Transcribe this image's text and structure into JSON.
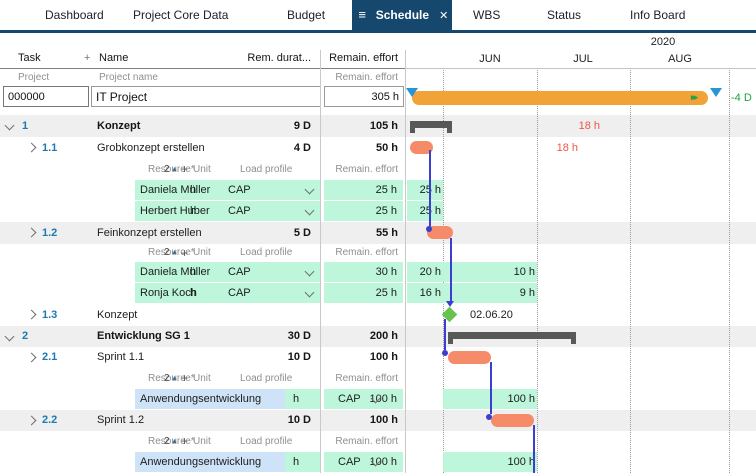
{
  "nav": {
    "tabs": [
      "Dashboard",
      "Project Core Data",
      "Budget",
      "Schedule",
      "WBS",
      "Status",
      "Info Board"
    ],
    "active_tab": "Schedule",
    "menu_icon": "≡",
    "close_icon": "✕"
  },
  "columns": {
    "task": "Task",
    "add": "+",
    "name": "Name",
    "duration": "Rem. durat...",
    "effort": "Remain. effort"
  },
  "subcolumns": {
    "project": "Project",
    "project_name": "Project name",
    "effort": "Remain. effort"
  },
  "project": {
    "id": "000000",
    "name": "IT Project",
    "effort": "305 h",
    "ahead_icon": "▸▸",
    "end_delta": "-4 D"
  },
  "timeline": {
    "year": "2020",
    "months": [
      "JUN",
      "JUL",
      "AUG"
    ]
  },
  "resource_header": {
    "label": "Resource*",
    "sort_count": "2",
    "sort_icon": "▲",
    "add": "+",
    "unit": "Unit",
    "load_profile": "Load profile",
    "effort": "Remain. effort"
  },
  "rows": [
    {
      "kind": "summary",
      "num": "1",
      "name": "Konzept",
      "duration": "9 D",
      "effort": "105 h",
      "gantt_note": "18 h"
    },
    {
      "kind": "task",
      "num": "1.1",
      "name": "Grobkonzept erstellen",
      "duration": "4 D",
      "effort": "50 h",
      "gantt_note": "18 h"
    },
    {
      "kind": "resource_header"
    },
    {
      "kind": "resource",
      "name": "Daniela Müller",
      "unit": "h",
      "load_profile": "CAP",
      "effort": "25 h",
      "period_values": [
        "25 h"
      ]
    },
    {
      "kind": "resource",
      "name": "Herbert Huber",
      "unit": "h",
      "load_profile": "CAP",
      "effort": "25 h",
      "period_values": [
        "25 h"
      ]
    },
    {
      "kind": "task",
      "num": "1.2",
      "name": "Feinkonzept erstellen",
      "duration": "5 D",
      "effort": "55 h"
    },
    {
      "kind": "resource_header"
    },
    {
      "kind": "resource",
      "name": "Daniela Müller",
      "unit": "h",
      "load_profile": "CAP",
      "effort": "30 h",
      "period_values": [
        "20 h",
        "10 h"
      ]
    },
    {
      "kind": "resource",
      "name": "Ronja Koch",
      "unit": "h",
      "load_profile": "CAP",
      "effort": "25 h",
      "period_values": [
        "16 h",
        "9 h"
      ]
    },
    {
      "kind": "task",
      "num": "1.3",
      "name": "Konzept",
      "milestone_date": "02.06.20"
    },
    {
      "kind": "summary",
      "num": "2",
      "name": "Entwicklung SG 1",
      "duration": "30 D",
      "effort": "200 h"
    },
    {
      "kind": "task",
      "num": "2.1",
      "name": "Sprint 1.1",
      "duration": "10 D",
      "effort": "100 h"
    },
    {
      "kind": "resource_header"
    },
    {
      "kind": "resource",
      "name": "Anwendungsentwicklung",
      "team": true,
      "unit": "h",
      "load_profile": "CAP",
      "effort": "100 h",
      "period_values": [
        "100 h"
      ]
    },
    {
      "kind": "task",
      "num": "2.2",
      "name": "Sprint 1.2",
      "duration": "10 D",
      "effort": "100 h"
    },
    {
      "kind": "resource_header"
    },
    {
      "kind": "resource",
      "name": "Anwendungsentwicklung",
      "team": true,
      "unit": "h",
      "load_profile": "CAP",
      "effort": "100 h",
      "period_values": [
        "100 h"
      ]
    }
  ],
  "colors": {
    "navy": "#16486e",
    "project_bar": "#f2a338",
    "task_bar": "#f58b68",
    "summary_bar": "#585858",
    "milestone": "#68c24f",
    "mint_cell": "#bdf6da",
    "team_cell": "#cfe3f8",
    "dependency": "#3a3fd0",
    "overload_text": "#ee5741",
    "delta_text": "#1fa23c",
    "task_number": "#1b7ab3"
  }
}
